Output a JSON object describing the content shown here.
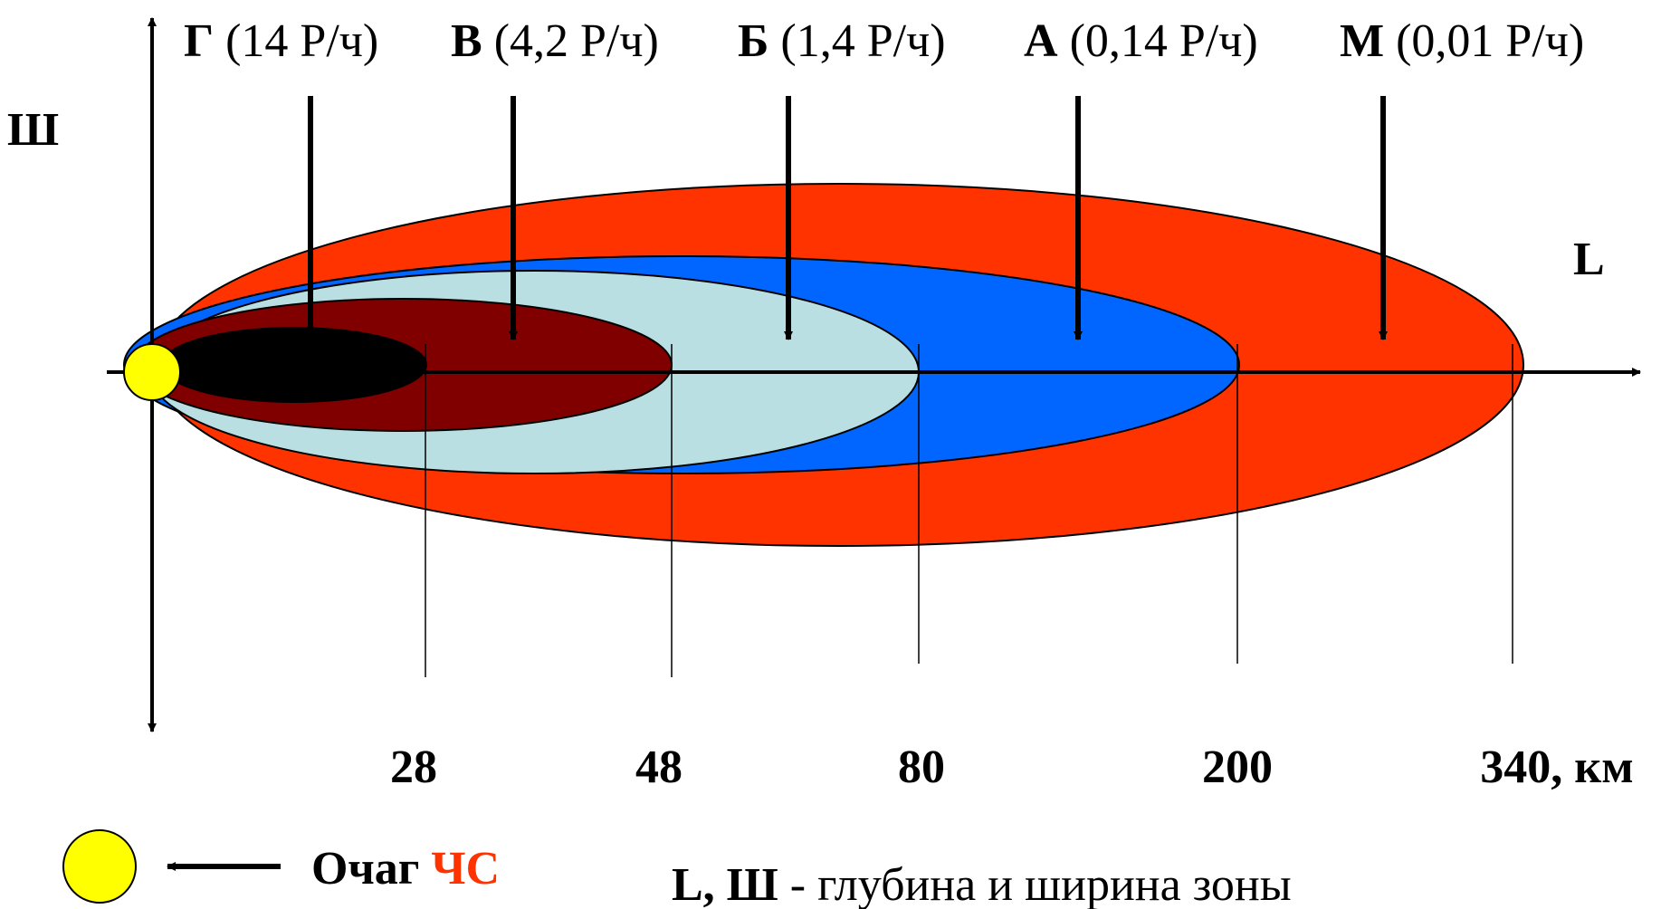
{
  "axes": {
    "y_label": "Ш",
    "x_label": "L"
  },
  "zones": [
    {
      "letter": "Г",
      "rate": " (14 Р/ч)",
      "color": "#000000"
    },
    {
      "letter": "В",
      "rate": " (4,2 Р/ч)",
      "color": "#800000"
    },
    {
      "letter": "Б",
      "rate": " (1,4 Р/ч)",
      "color": "#BADFE3"
    },
    {
      "letter": "А",
      "rate": " (0,14 Р/ч)",
      "color": "#0066FF"
    },
    {
      "letter": "М",
      "rate": " (0,01 Р/ч)",
      "color": "#FF3300"
    }
  ],
  "distance_ticks": [
    "28",
    "48",
    "80",
    "200",
    "340, км"
  ],
  "legend": {
    "source_label_prefix": "Очаг ",
    "source_label_highlight": "ЧС",
    "source_highlight_color": "#FF3300",
    "source_marker_color": "#FFFF00",
    "definition_bold": "L, Ш",
    "definition_text": " - глубина и ширина зоны"
  }
}
